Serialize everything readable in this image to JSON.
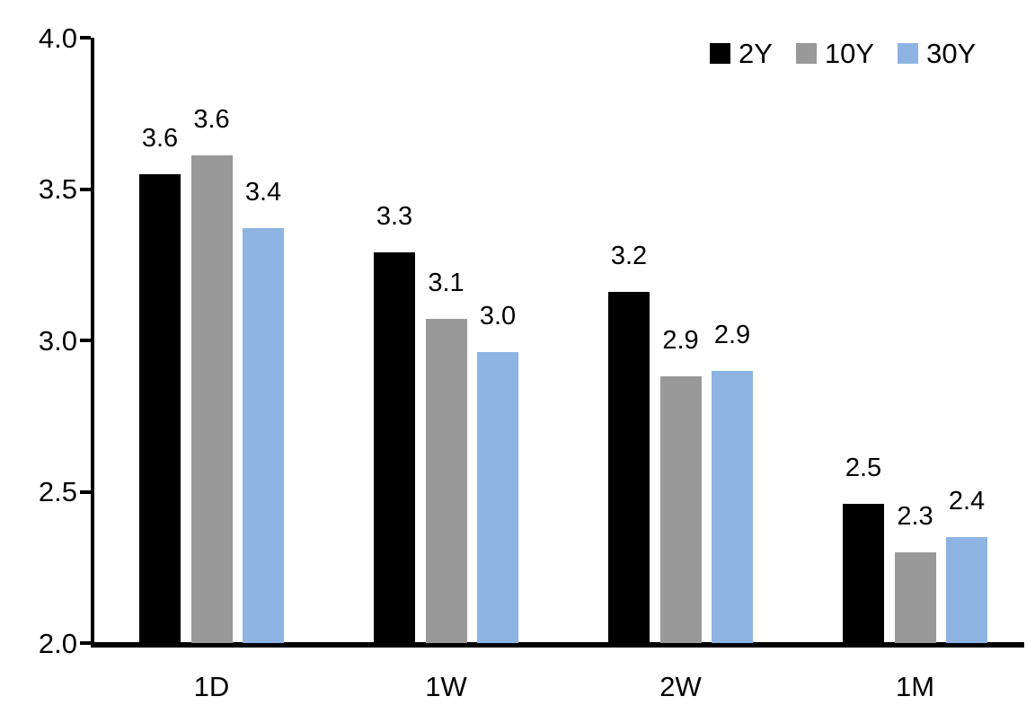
{
  "chart_data": {
    "type": "bar",
    "title": "",
    "xlabel": "",
    "ylabel": "",
    "categories": [
      "1D",
      "1W",
      "2W",
      "1M"
    ],
    "series": [
      {
        "name": "2Y",
        "color": "#000000",
        "values": [
          3.55,
          3.29,
          3.16,
          2.46
        ],
        "labels": [
          "3.6",
          "3.3",
          "3.2",
          "2.5"
        ]
      },
      {
        "name": "10Y",
        "color": "#999999",
        "values": [
          3.61,
          3.07,
          2.88,
          2.3
        ],
        "labels": [
          "3.6",
          "3.1",
          "2.9",
          "2.3"
        ]
      },
      {
        "name": "30Y",
        "color": "#8DB4E2",
        "values": [
          3.37,
          2.96,
          2.9,
          2.35
        ],
        "labels": [
          "3.4",
          "3.0",
          "2.9",
          "2.4"
        ]
      }
    ],
    "ylim": [
      2.0,
      4.0
    ],
    "yticks": [
      {
        "value": 4.0,
        "label": "4.0"
      },
      {
        "value": 3.5,
        "label": "3.5"
      },
      {
        "value": 3.0,
        "label": "3.0"
      },
      {
        "value": 2.5,
        "label": "2.5"
      },
      {
        "value": 2.0,
        "label": "2.0"
      }
    ],
    "grid": false,
    "legend_position": "top-right",
    "axis_color": "#000000",
    "text_color": "#000000",
    "background": "#FFFFFF"
  }
}
